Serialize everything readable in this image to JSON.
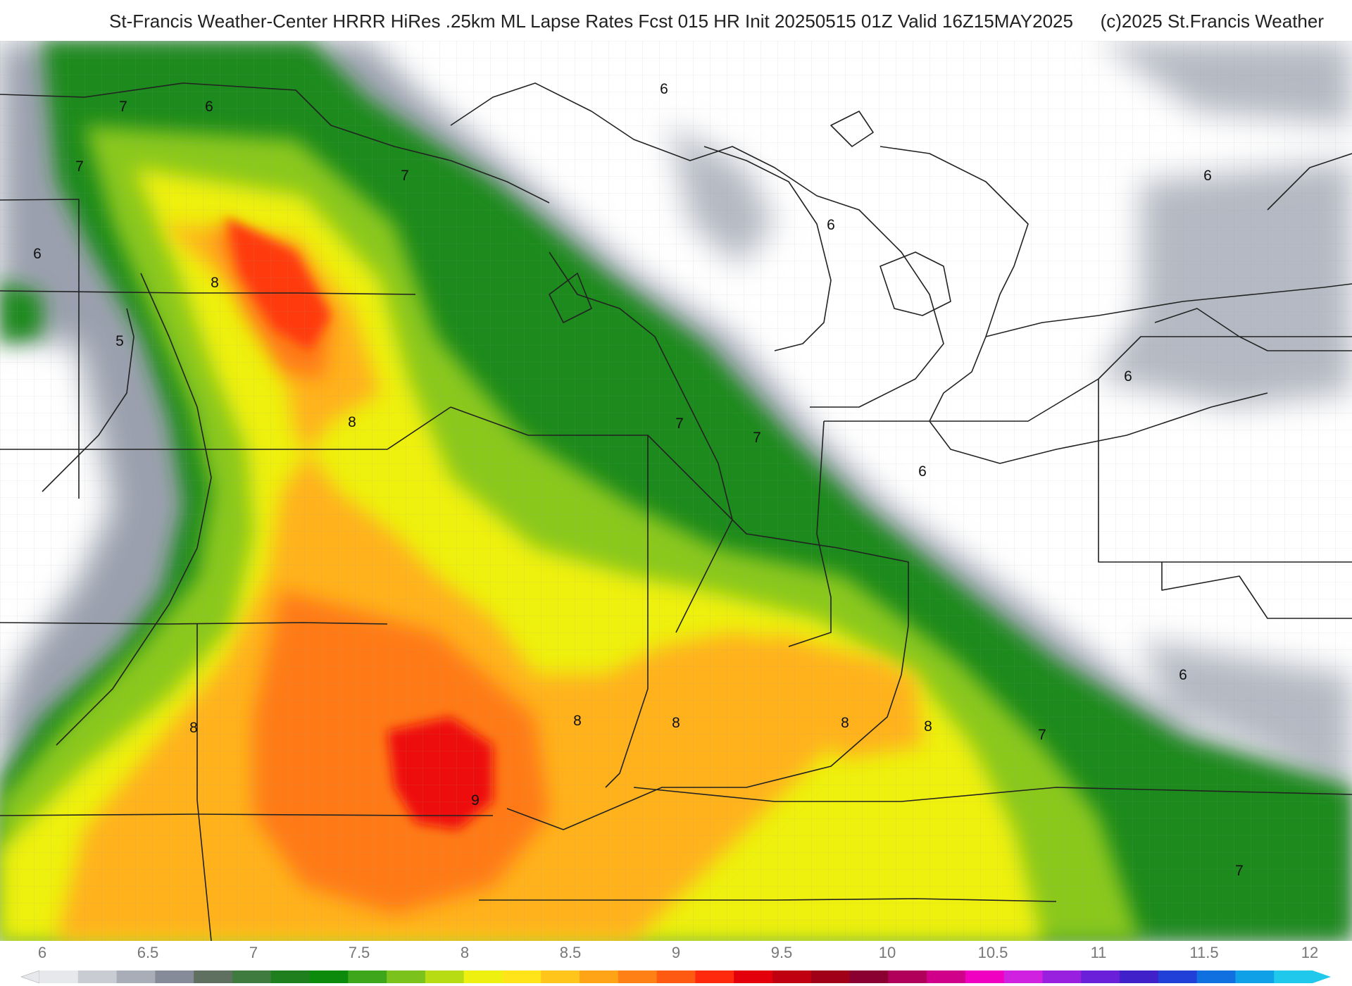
{
  "header": {
    "title_left": "St-Francis Weather-Center HRRR HiRes .25km ML Lapse Rates  Fcst 015 HR Init 20250515 01Z  Valid 16Z15MAY2025",
    "copyright": "(c)2025 St.Francis Weather"
  },
  "colorbar": {
    "ticks": [
      "6",
      "6.5",
      "7",
      "7.5",
      "8",
      "8.5",
      "9",
      "9.5",
      "10",
      "10.5",
      "11",
      "11.5",
      "12"
    ],
    "colors": [
      "#e6e8ec",
      "#c9ccd3",
      "#a8adb8",
      "#858b99",
      "#607060",
      "#3f7a3f",
      "#1f7f1f",
      "#0b8a0b",
      "#3ea61b",
      "#7cc21c",
      "#b8dc14",
      "#eef010",
      "#ffe41a",
      "#ffc51a",
      "#ffa317",
      "#ff8015",
      "#ff5a12",
      "#ff2a0e",
      "#e4000b",
      "#c00010",
      "#a00018",
      "#8a0030",
      "#b0005a",
      "#d0008a",
      "#f000c0",
      "#d020e0",
      "#9a20e0",
      "#6a20d8",
      "#4020c8",
      "#2040d8",
      "#1070e0",
      "#10a0e8",
      "#20c8ec"
    ]
  },
  "contour_labels": [
    {
      "text": "7"
    },
    {
      "text": "6"
    },
    {
      "text": "7"
    },
    {
      "text": "6"
    },
    {
      "text": "8"
    },
    {
      "text": "5"
    },
    {
      "text": "7"
    },
    {
      "text": "8"
    },
    {
      "text": "6"
    },
    {
      "text": "6"
    },
    {
      "text": "6"
    },
    {
      "text": "6"
    },
    {
      "text": "7"
    },
    {
      "text": "7"
    },
    {
      "text": "6"
    },
    {
      "text": "6"
    },
    {
      "text": "8"
    },
    {
      "text": "8"
    },
    {
      "text": "8"
    },
    {
      "text": "8"
    },
    {
      "text": "8"
    },
    {
      "text": "7"
    },
    {
      "text": "9"
    },
    {
      "text": "7"
    }
  ]
}
